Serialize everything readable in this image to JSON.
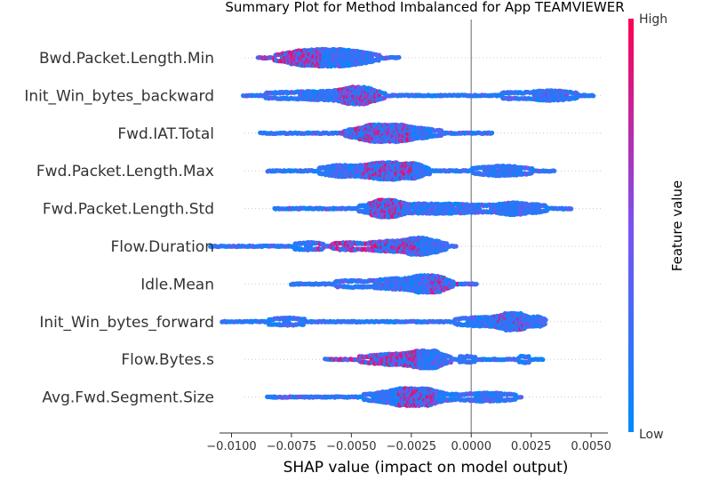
{
  "chart_data": {
    "type": "scatter",
    "subtype": "shap-beeswarm-summary",
    "title": "Summary Plot for Method Imbalanced for App TEAMVIEWER",
    "xlabel": "SHAP value (impact on model output)",
    "ylabel": "",
    "xlim": [
      -0.0105,
      0.0057
    ],
    "xticks": [
      -0.01,
      -0.0075,
      -0.005,
      -0.0025,
      0.0,
      0.0025,
      0.005
    ],
    "xtick_labels": [
      "−0.0100",
      "−0.0075",
      "−0.0050",
      "−0.0025",
      "0.0000",
      "0.0025",
      "0.0050"
    ],
    "zero_line": 0.0,
    "grid": false,
    "colorbar": {
      "label": "Feature value",
      "high_label": "High",
      "low_label": "Low",
      "low_color": "#008afb",
      "mid_color": "#7c52f0",
      "high_color": "#ff0052"
    },
    "features": [
      {
        "name": "Bwd.Packet.Length.Min",
        "min": -0.0089,
        "max": -0.003,
        "peaks": [
          {
            "x": -0.0059,
            "w": 0.0012,
            "h": 1.0
          },
          {
            "x": -0.0073,
            "w": 0.0008,
            "h": 0.45
          },
          {
            "x": -0.0046,
            "w": 0.0007,
            "h": 0.3
          }
        ],
        "high_range": [
          -0.009,
          -0.0062
        ],
        "high_frac": 0.55
      },
      {
        "name": "Init_Win_bytes_backward",
        "min": -0.0095,
        "max": 0.0051,
        "peaks": [
          {
            "x": -0.0047,
            "w": 0.0008,
            "h": 1.0
          },
          {
            "x": -0.0065,
            "w": 0.0015,
            "h": 0.35
          },
          {
            "x": 0.0033,
            "w": 0.0011,
            "h": 0.45
          },
          {
            "x": 0.0016,
            "w": 0.0005,
            "h": 0.2
          },
          {
            "x": -0.0083,
            "w": 0.0006,
            "h": 0.12
          },
          {
            "x": 0.0006,
            "w": 0.0002,
            "h": 0.08
          }
        ],
        "high_range": [
          -0.0055,
          -0.0035
        ],
        "high_frac": 0.3
      },
      {
        "name": "Fwd.IAT.Total",
        "min": -0.0088,
        "max": 0.0009,
        "peaks": [
          {
            "x": -0.0038,
            "w": 0.0011,
            "h": 1.0
          },
          {
            "x": -0.0025,
            "w": 0.0012,
            "h": 0.45
          },
          {
            "x": 0.0003,
            "w": 0.0004,
            "h": 0.1
          }
        ],
        "high_range": [
          -0.0055,
          -0.0025
        ],
        "high_frac": 0.35
      },
      {
        "name": "Fwd.Packet.Length.Max",
        "min": -0.0085,
        "max": 0.0035,
        "peaks": [
          {
            "x": -0.0035,
            "w": 0.0012,
            "h": 1.0
          },
          {
            "x": -0.0055,
            "w": 0.0008,
            "h": 0.5
          },
          {
            "x": 0.0013,
            "w": 0.0012,
            "h": 0.45
          },
          {
            "x": -0.0023,
            "w": 0.0004,
            "h": 0.4
          }
        ],
        "high_range": [
          -0.0045,
          -0.0024
        ],
        "high_frac": 0.35
      },
      {
        "name": "Fwd.Packet.Length.Std",
        "min": -0.0082,
        "max": 0.0042,
        "peaks": [
          {
            "x": -0.0036,
            "w": 0.0006,
            "h": 1.0
          },
          {
            "x": -0.0015,
            "w": 0.0028,
            "h": 0.45
          },
          {
            "x": 0.0018,
            "w": 0.0007,
            "h": 0.5
          },
          {
            "x": 0.0028,
            "w": 0.0005,
            "h": 0.2
          }
        ],
        "high_range": [
          -0.0042,
          -0.0028
        ],
        "high_frac": 0.45
      },
      {
        "name": "Flow.Duration",
        "min": -0.0109,
        "max": -0.0006,
        "peaks": [
          {
            "x": -0.0022,
            "w": 0.0006,
            "h": 1.0
          },
          {
            "x": -0.0035,
            "w": 0.0009,
            "h": 0.5
          },
          {
            "x": -0.0068,
            "w": 0.0007,
            "h": 0.3
          },
          {
            "x": -0.0052,
            "w": 0.0006,
            "h": 0.3
          },
          {
            "x": -0.0014,
            "w": 0.0004,
            "h": 0.35
          }
        ],
        "high_range": [
          -0.0065,
          -0.0021
        ],
        "high_frac": 0.4
      },
      {
        "name": "Idle.Mean",
        "min": -0.0075,
        "max": 0.0002,
        "peaks": [
          {
            "x": -0.0017,
            "w": 0.0006,
            "h": 1.0
          },
          {
            "x": -0.0028,
            "w": 0.0015,
            "h": 0.55
          },
          {
            "x": -0.0052,
            "w": 0.0008,
            "h": 0.2
          }
        ],
        "high_range": [
          -0.0017,
          0.0002
        ],
        "high_frac": 0.3
      },
      {
        "name": "Init_Win_bytes_forward",
        "min": -0.0104,
        "max": 0.0031,
        "peaks": [
          {
            "x": 0.0018,
            "w": 0.0006,
            "h": 1.0
          },
          {
            "x": 0.0005,
            "w": 0.0012,
            "h": 0.4
          },
          {
            "x": -0.0077,
            "w": 0.0009,
            "h": 0.3
          },
          {
            "x": 0.0028,
            "w": 0.0003,
            "h": 0.4
          }
        ],
        "high_range": [
          0.001,
          0.0025
        ],
        "high_frac": 0.15
      },
      {
        "name": "Flow.Bytes.s",
        "min": -0.0061,
        "max": 0.003,
        "peaks": [
          {
            "x": -0.0018,
            "w": 0.0006,
            "h": 1.0
          },
          {
            "x": -0.003,
            "w": 0.0015,
            "h": 0.55
          },
          {
            "x": 0.0022,
            "w": 0.0003,
            "h": 0.25
          },
          {
            "x": -0.0001,
            "w": 0.0005,
            "h": 0.2
          }
        ],
        "high_range": [
          -0.006,
          -0.0022
        ],
        "high_frac": 0.5
      },
      {
        "name": "Avg.Fwd.Segment.Size",
        "min": -0.0085,
        "max": 0.0021,
        "peaks": [
          {
            "x": -0.0022,
            "w": 0.0009,
            "h": 1.0
          },
          {
            "x": -0.0032,
            "w": 0.0012,
            "h": 0.5
          },
          {
            "x": 0.0007,
            "w": 0.0013,
            "h": 0.35
          }
        ],
        "high_range": [
          -0.003,
          -0.0015
        ],
        "high_frac": 0.35
      }
    ]
  }
}
